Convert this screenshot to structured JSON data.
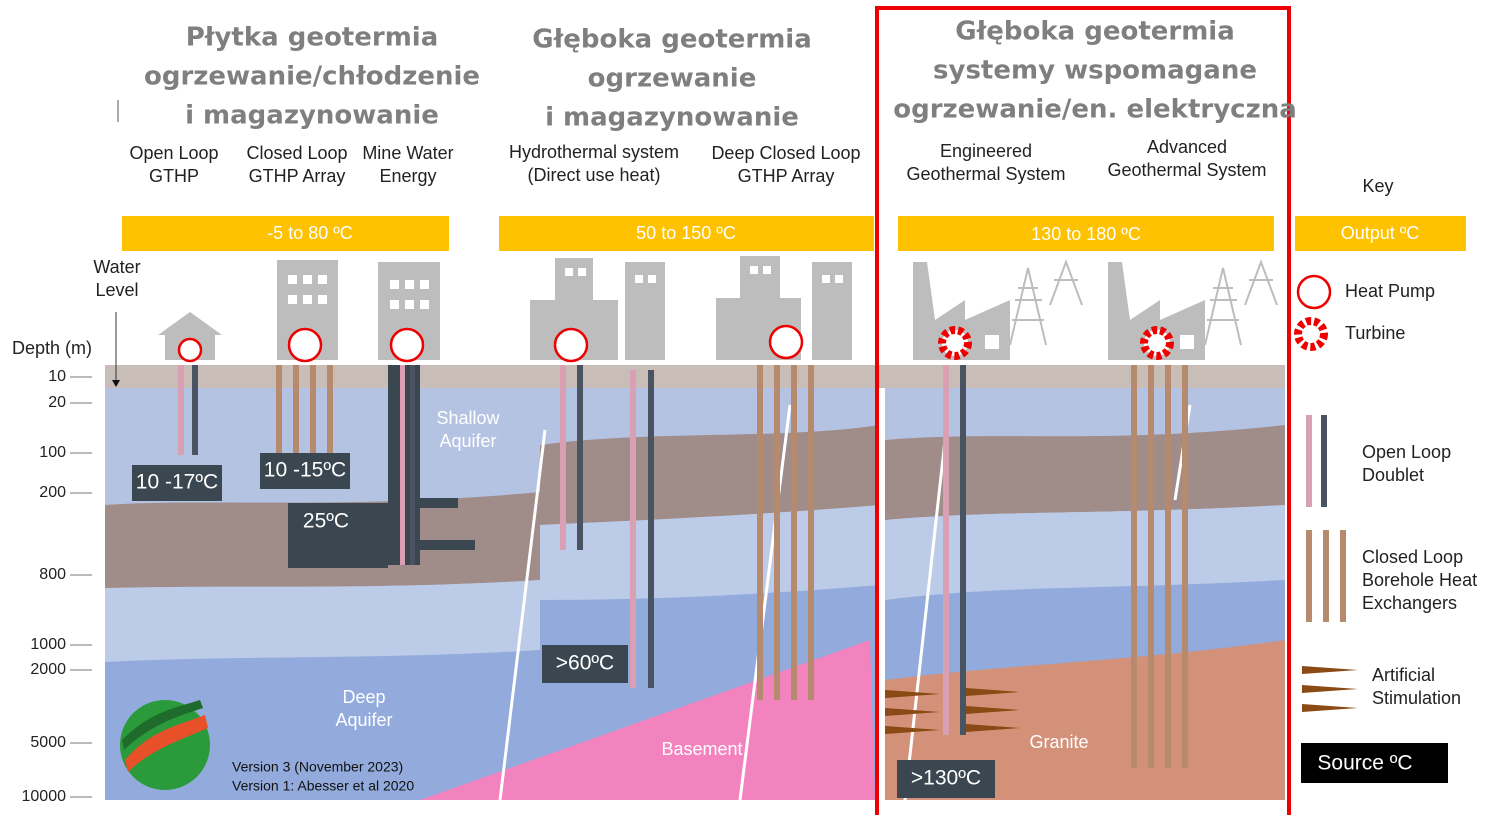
{
  "columns": [
    {
      "title": [
        "Płytka geotermia",
        "ogrzewanie/chłodzenie",
        "i magazynowanie"
      ],
      "range": "-5 to  80 ºC"
    },
    {
      "title": [
        "Głęboka geotermia",
        "ogrzewanie",
        "i magazynowanie"
      ],
      "range": "50 to  150 ºC"
    },
    {
      "title": [
        "Głęboka geotermia",
        "systemy wspomagane",
        "ogrzewanie/en. elektryczna"
      ],
      "range": "130  to  180 ºC"
    }
  ],
  "systems": [
    [
      "Open Loop",
      "GTHP"
    ],
    [
      "Closed Loop",
      "GTHP Array"
    ],
    [
      "Mine Water",
      "Energy"
    ],
    [
      "Hydrothermal system",
      "(Direct use heat)"
    ],
    [
      "Deep Closed Loop",
      "GTHP Array"
    ],
    [
      "Engineered",
      "Geothermal System"
    ],
    [
      "Advanced",
      "Geothermal System"
    ]
  ],
  "water_level": [
    "Water",
    "Level"
  ],
  "depth_axis": {
    "title": "Depth (m)",
    "ticks": [
      10,
      20,
      100,
      200,
      800,
      1000,
      2000,
      5000,
      10000
    ]
  },
  "source_temps": [
    "10 -17ºC",
    "10 -15ºC",
    "25ºC",
    ">60ºC",
    ">130ºC"
  ],
  "layers": {
    "shallow_aquifer": [
      "Shallow",
      "Aquifer"
    ],
    "deep_aquifer": [
      "Deep",
      "Aquifer"
    ],
    "basement": "Basement",
    "granite": "Granite"
  },
  "version": [
    "Version 3 (November 2023)",
    "Version 1: Abesser et al 2020"
  ],
  "key": {
    "title": "Key",
    "output": "Output ºC",
    "heat_pump": "Heat Pump",
    "turbine": "Turbine",
    "open_loop": [
      "Open Loop",
      "Doublet"
    ],
    "closed_loop": [
      "Closed Loop",
      "Borehole Heat",
      "Exchangers"
    ],
    "stimulation": [
      "Artificial",
      "Stimulation"
    ],
    "source": "Source ºC"
  }
}
